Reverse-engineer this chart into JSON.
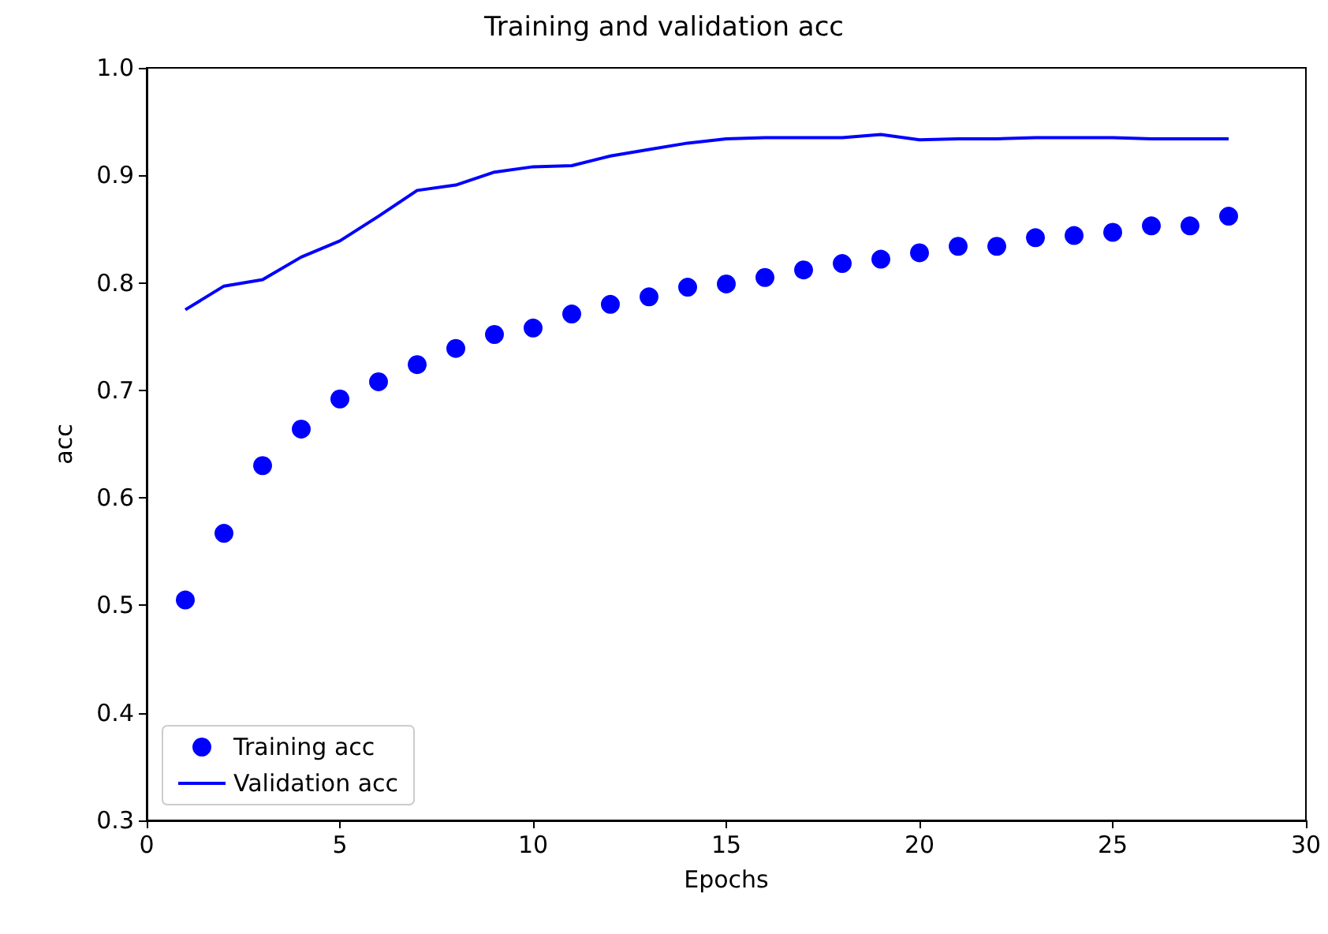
{
  "chart_data": {
    "type": "line",
    "title": "Training and validation acc",
    "xlabel": "Epochs",
    "ylabel": "acc",
    "x": [
      1,
      2,
      3,
      4,
      5,
      6,
      7,
      8,
      9,
      10,
      11,
      12,
      13,
      14,
      15,
      16,
      17,
      18,
      19,
      20,
      21,
      22,
      23,
      24,
      25,
      26,
      27,
      28
    ],
    "series": [
      {
        "name": "Training acc",
        "type": "scatter",
        "marker": "circle",
        "color": "#0000ff",
        "values": [
          0.505,
          0.567,
          0.63,
          0.664,
          0.692,
          0.708,
          0.724,
          0.739,
          0.752,
          0.758,
          0.771,
          0.78,
          0.787,
          0.796,
          0.799,
          0.805,
          0.812,
          0.818,
          0.822,
          0.828,
          0.834,
          0.834,
          0.842,
          0.844,
          0.847,
          0.853,
          0.853,
          0.862
        ]
      },
      {
        "name": "Validation acc",
        "marker": "none",
        "line_style": "solid",
        "color": "#0000ff",
        "values": [
          0.775,
          0.797,
          0.803,
          0.824,
          0.839,
          0.862,
          0.886,
          0.891,
          0.903,
          0.908,
          0.909,
          0.918,
          0.924,
          0.93,
          0.934,
          0.935,
          0.935,
          0.935,
          0.938,
          0.933,
          0.934,
          0.934,
          0.935,
          0.935,
          0.935,
          0.934,
          0.934,
          0.934
        ]
      }
    ],
    "xlim": [
      0,
      30
    ],
    "xticks": [
      0,
      5,
      10,
      15,
      20,
      25,
      30
    ],
    "ylim": [
      0.3,
      1.0
    ],
    "yticks": [
      0.3,
      0.4,
      0.5,
      0.6,
      0.7,
      0.8,
      0.9,
      {
        "value": 1,
        "label": "1.0"
      }
    ],
    "grid": false,
    "legend": "bottom left"
  }
}
